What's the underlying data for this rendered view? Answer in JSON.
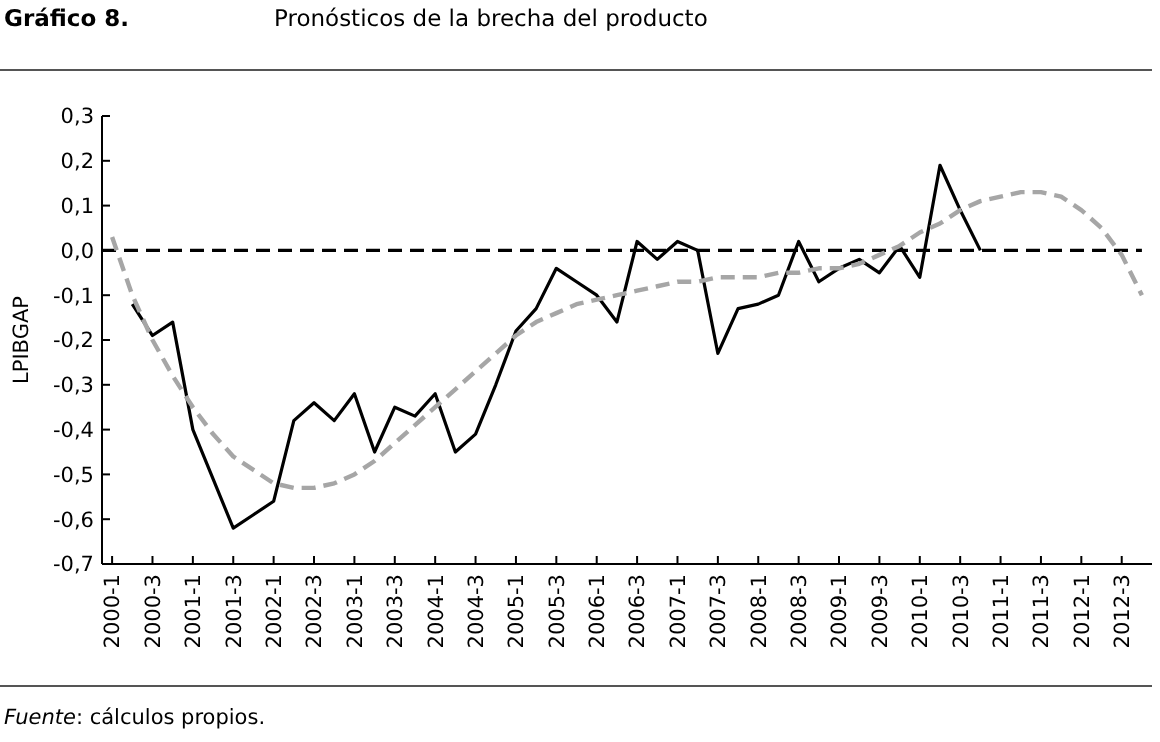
{
  "chart_data": {
    "type": "line",
    "title": "Gráfico 8.",
    "subtitle": "Pronósticos de la brecha del producto",
    "ylabel": "LPIBGAP",
    "categories": [
      "2000-1",
      null,
      "2000-3",
      null,
      "2001-1",
      null,
      "2001-3",
      null,
      "2002-1",
      null,
      "2002-3",
      null,
      "2003-1",
      null,
      "2003-3",
      null,
      "2004-1",
      null,
      "2004-3",
      null,
      "2005-1",
      null,
      "2005-3",
      null,
      "2006-1",
      null,
      "2006-3",
      null,
      "2007-1",
      null,
      "2007-3",
      null,
      "2008-1",
      null,
      "2008-3",
      null,
      "2009-1",
      null,
      "2009-3",
      null,
      "2010-1",
      null,
      "2010-3",
      null,
      "2011-1",
      null,
      "2011-3",
      null,
      "2012-1",
      null,
      "2012-3",
      null
    ],
    "series": [
      {
        "color": "#000000",
        "line_style": "solid",
        "values": [
          null,
          -0.12,
          -0.19,
          -0.16,
          -0.4,
          -0.51,
          -0.62,
          -0.59,
          -0.56,
          -0.38,
          -0.34,
          -0.38,
          -0.32,
          -0.45,
          -0.35,
          -0.37,
          -0.32,
          -0.45,
          -0.41,
          -0.3,
          -0.18,
          -0.13,
          -0.04,
          -0.07,
          -0.1,
          -0.16,
          0.02,
          -0.02,
          0.02,
          0.0,
          -0.23,
          -0.13,
          -0.12,
          -0.1,
          0.02,
          -0.07,
          -0.04,
          -0.02,
          -0.05,
          0.01,
          -0.06,
          0.19,
          0.09,
          0.0,
          null,
          null,
          null,
          null,
          null,
          null,
          null,
          null
        ]
      },
      {
        "color": "#a6a6a6",
        "line_style": "dashed",
        "values": [
          0.03,
          -0.1,
          -0.2,
          -0.28,
          -0.35,
          -0.41,
          -0.46,
          -0.49,
          -0.52,
          -0.53,
          -0.53,
          -0.52,
          -0.5,
          -0.47,
          -0.43,
          -0.39,
          -0.35,
          -0.31,
          -0.27,
          -0.23,
          -0.19,
          -0.16,
          -0.14,
          -0.12,
          -0.11,
          -0.1,
          -0.09,
          -0.08,
          -0.07,
          -0.07,
          -0.06,
          -0.06,
          -0.06,
          -0.05,
          -0.05,
          -0.04,
          -0.04,
          -0.03,
          -0.01,
          0.01,
          0.04,
          0.06,
          0.09,
          0.11,
          0.12,
          0.13,
          0.13,
          0.12,
          0.09,
          0.05,
          -0.01,
          -0.1
        ]
      }
    ],
    "ylim": [
      -0.7,
      0.3
    ],
    "yticks": [
      {
        "value": -0.7,
        "label": "-0,7"
      },
      {
        "value": -0.6,
        "label": "-0,6"
      },
      {
        "value": -0.5,
        "label": "-0,5"
      },
      {
        "value": -0.4,
        "label": "-0,4"
      },
      {
        "value": -0.3,
        "label": "-0,3"
      },
      {
        "value": -0.2,
        "label": "-0,2"
      },
      {
        "value": -0.1,
        "label": "-0,1"
      },
      {
        "value": 0,
        "label": "0,0"
      },
      {
        "value": 0.1,
        "label": "0,1"
      },
      {
        "value": 0.2,
        "label": "0,2"
      },
      {
        "value": 0.3,
        "label": "0,3"
      }
    ],
    "ref_lines": [
      {
        "axis": "y",
        "value": 0,
        "color": "#000000",
        "line_style": "dashed"
      }
    ],
    "grid": false,
    "annotations": [
      "Fuente: cálculos propios."
    ]
  }
}
